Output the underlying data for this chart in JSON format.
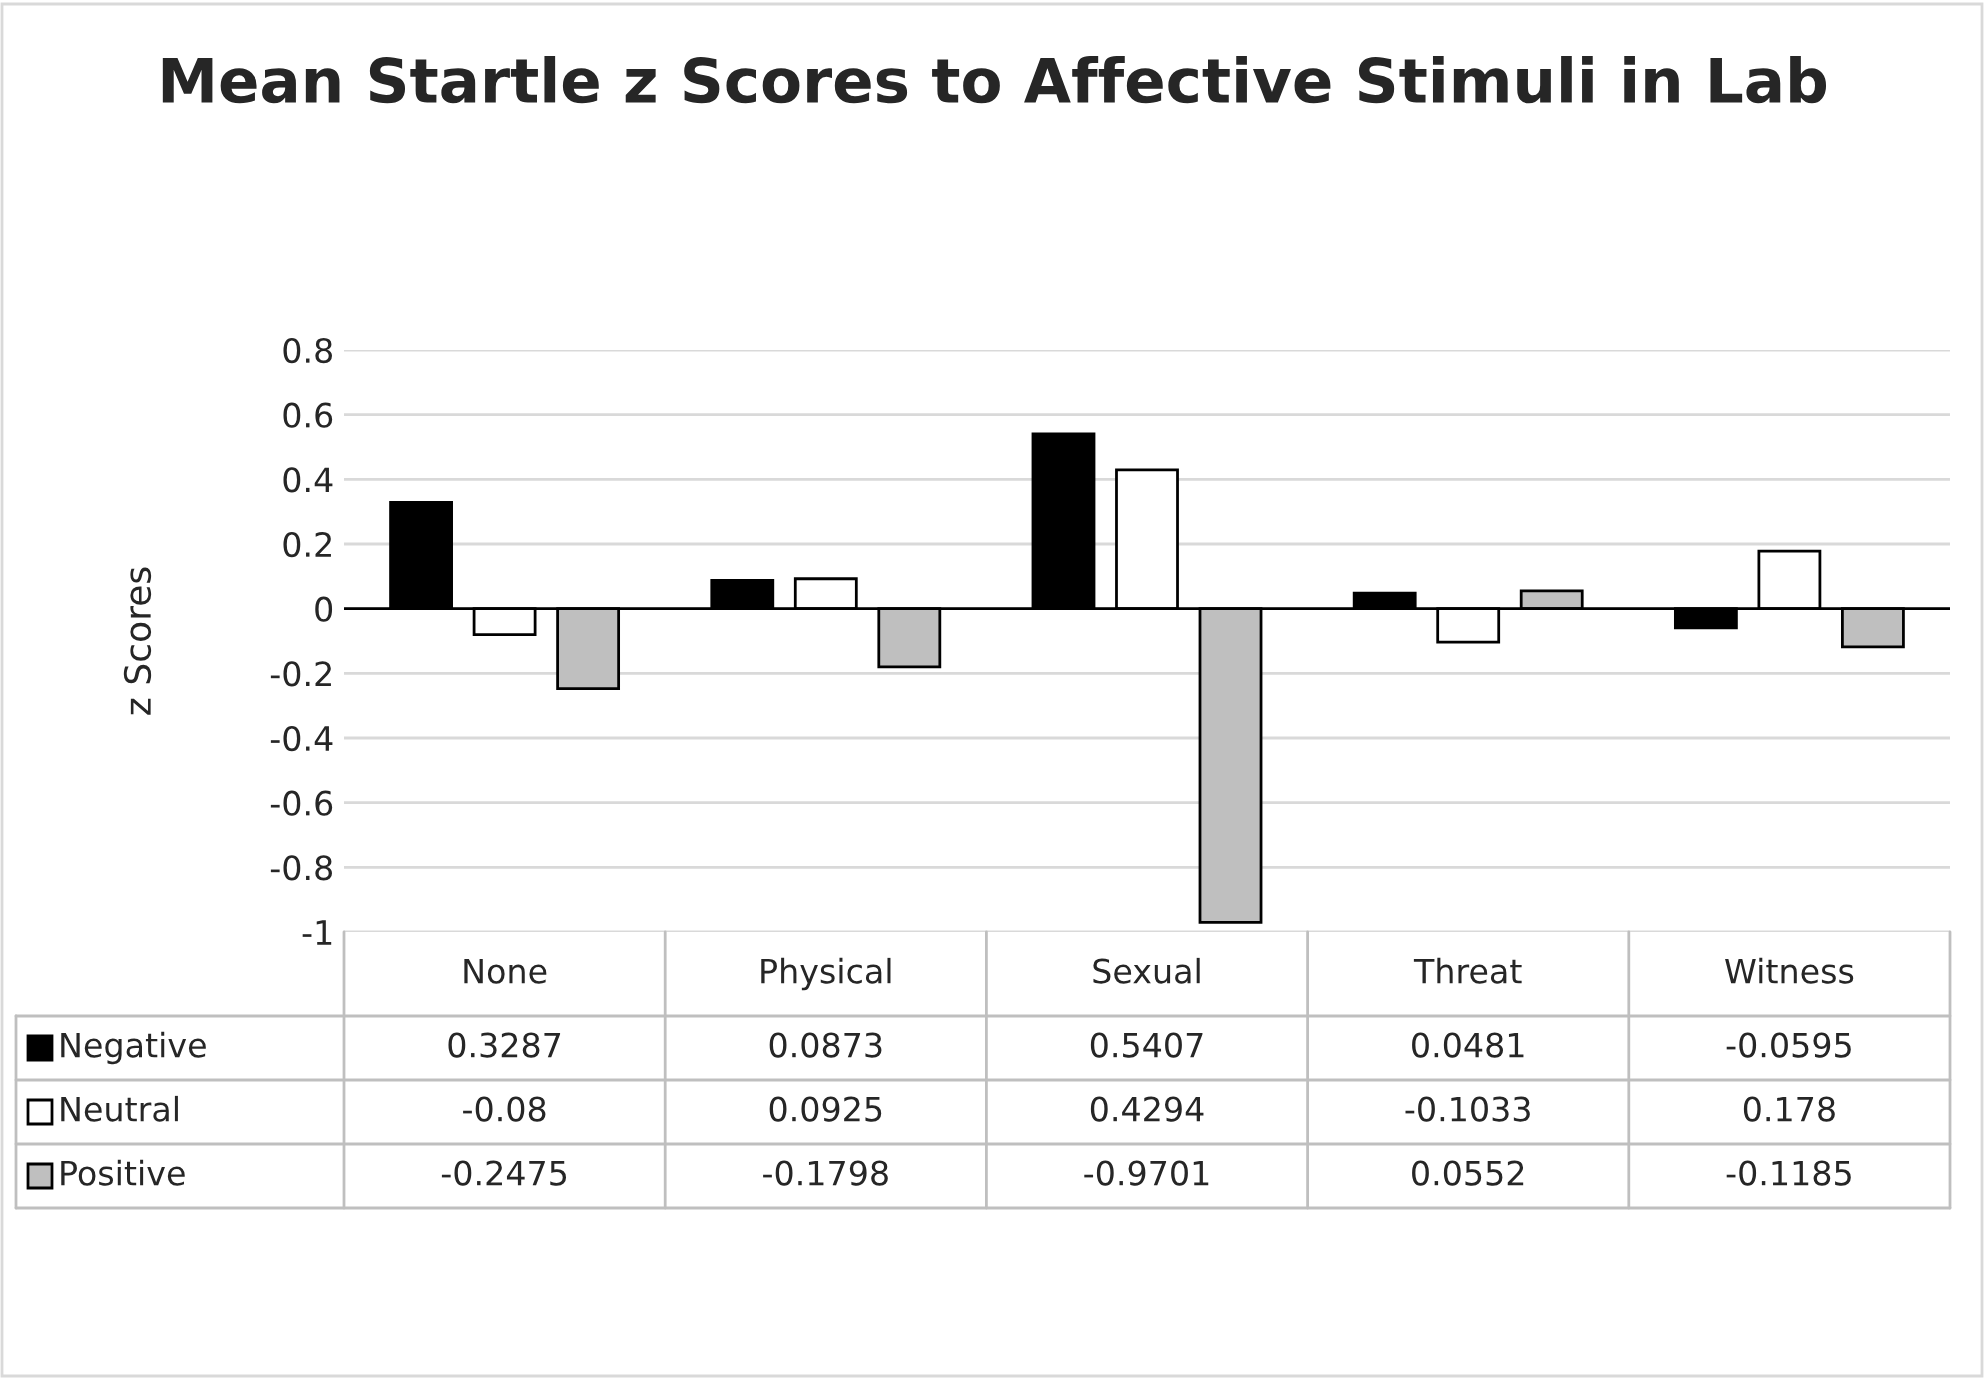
{
  "chart_data": {
    "type": "bar",
    "title": "Mean Startle z Scores to Affective Stimuli in Lab",
    "ylabel": "z Scores",
    "categories": [
      "None",
      "Physical",
      "Sexual",
      "Threat",
      "Witness"
    ],
    "series": [
      {
        "name": "Negative",
        "color": "#000000",
        "values": [
          0.3287,
          0.0873,
          0.5407,
          0.0481,
          -0.0595
        ]
      },
      {
        "name": "Neutral",
        "color": "#ffffff",
        "values": [
          -0.08,
          0.0925,
          0.4294,
          -0.1033,
          0.178
        ]
      },
      {
        "name": "Positive",
        "color": "#bfbfbf",
        "values": [
          -0.2475,
          -0.1798,
          -0.9701,
          0.0552,
          -0.1185
        ]
      }
    ],
    "ylim": [
      -1,
      0.8
    ],
    "yticks": [
      -1,
      -0.8,
      -0.6,
      -0.4,
      -0.2,
      0,
      0.2,
      0.4,
      0.6,
      0.8
    ],
    "grid": "y",
    "legend": "bottom",
    "data_labels": true
  }
}
